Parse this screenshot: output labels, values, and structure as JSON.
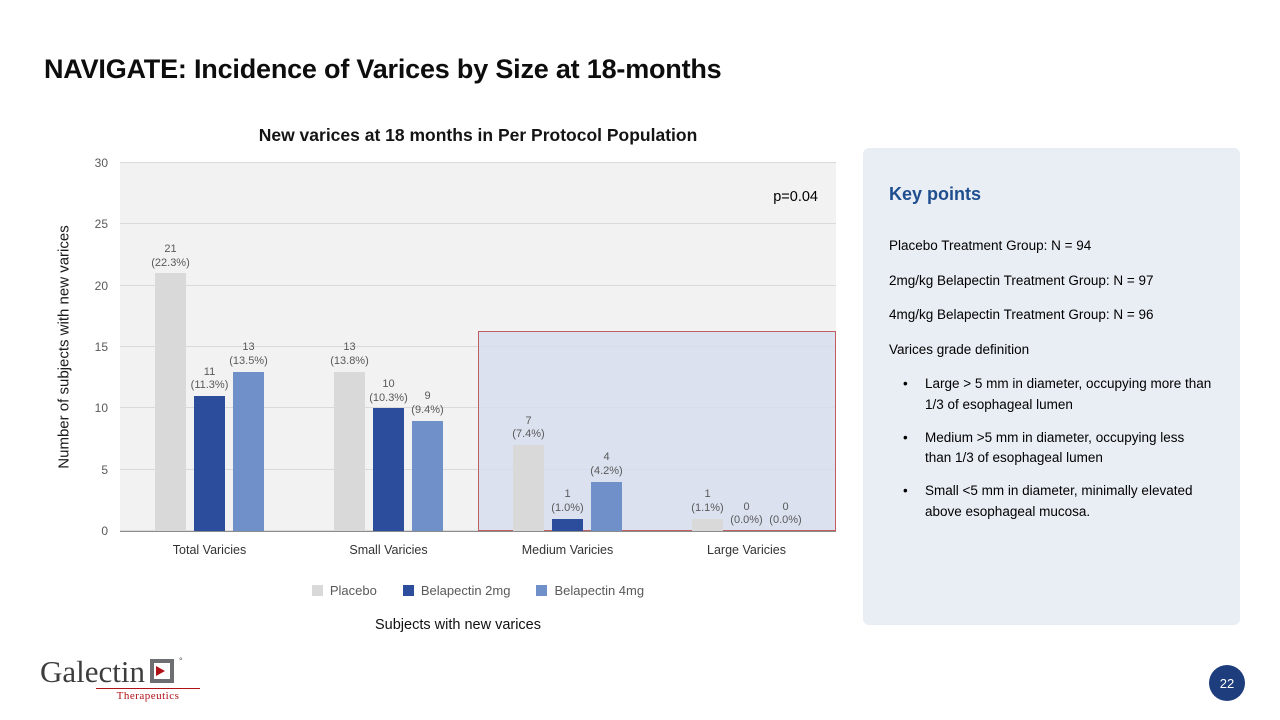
{
  "slide": {
    "title": "NAVIGATE: Incidence of Varices by Size at 18-months",
    "page_number": "22"
  },
  "chart_data": {
    "type": "bar",
    "title": "New varices at 18 months in Per Protocol Population",
    "xlabel": "Subjects with new varices",
    "ylabel": "Number of subjects with new varices",
    "ylim": [
      0,
      30
    ],
    "yticks": [
      0,
      5,
      10,
      15,
      20,
      25,
      30
    ],
    "grid": true,
    "legend_position": "bottom",
    "annotation": "p=0.04",
    "plot_background": "#f2f2f2",
    "categories": [
      "Total Varicies",
      "Small Varicies",
      "Medium Varicies",
      "Large Varicies"
    ],
    "series": [
      {
        "name": "Placebo",
        "color": "#d9d9d9",
        "values": [
          21,
          13,
          7,
          1
        ],
        "percent_labels": [
          "22.3%",
          "13.8%",
          "7.4%",
          "1.1%"
        ]
      },
      {
        "name": "Belapectin 2mg",
        "color": "#2c4c9c",
        "values": [
          11,
          10,
          1,
          0
        ],
        "percent_labels": [
          "11.3%",
          "10.3%",
          "1.0%",
          "0.0%"
        ]
      },
      {
        "name": "Belapectin 4mg",
        "color": "#6f90c8",
        "values": [
          13,
          9,
          4,
          0
        ],
        "percent_labels": [
          "13.5%",
          "9.4%",
          "4.2%",
          "0.0%"
        ]
      }
    ],
    "highlight": {
      "from_category_index": 2,
      "to_category_index": 3,
      "top_value": 16.3,
      "fill": "rgba(213,220,238,0.8)",
      "border": "#bf5f5f"
    }
  },
  "key_points": {
    "heading": "Key points",
    "heading_color": "#1f4e8f",
    "panel_background": "#e9edf4",
    "bullet_char": "•",
    "paragraphs": [
      "Placebo Treatment Group: N = 94",
      "2mg/kg Belapectin Treatment Group: N = 97",
      "4mg/kg Belapectin Treatment Group: N = 96",
      "Varices grade definition"
    ],
    "bullets": [
      "Large > 5 mm in diameter, occupying more than 1/3 of esophageal lumen",
      "Medium >5 mm in diameter, occupying less than 1/3 of esophageal lumen",
      "Small <5 mm in diameter, minimally elevated above esophageal mucosa."
    ]
  },
  "logo": {
    "wordmark": "Galectin",
    "subtext": "Therapeutics",
    "registered_mark": "°"
  },
  "badge_color": "#1e3d7d"
}
